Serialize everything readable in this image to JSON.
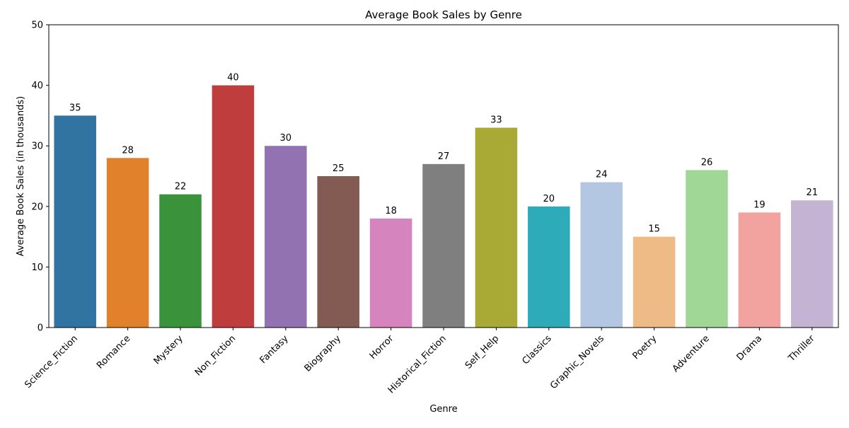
{
  "chart_data": {
    "type": "bar",
    "title": "Average Book Sales by Genre",
    "xlabel": "Genre",
    "ylabel": "Average Book Sales (in thousands)",
    "ylim": [
      0,
      50
    ],
    "yticks": [
      0,
      10,
      20,
      30,
      40,
      50
    ],
    "categories": [
      "Science_Fiction",
      "Romance",
      "Mystery",
      "Non_Fiction",
      "Fantasy",
      "Biography",
      "Horror",
      "Historical_Fiction",
      "Self_Help",
      "Classics",
      "Graphic_Novels",
      "Poetry",
      "Adventure",
      "Drama",
      "Thriller"
    ],
    "values": [
      35,
      28,
      22,
      40,
      30,
      25,
      18,
      27,
      33,
      20,
      24,
      15,
      26,
      19,
      21
    ],
    "colors": [
      "#3274a1",
      "#e1812c",
      "#3a923a",
      "#c03d3e",
      "#9372b2",
      "#845b53",
      "#d684bd",
      "#7f7f7f",
      "#a9aa35",
      "#2eabb8",
      "#b3c6e2",
      "#eebb86",
      "#a0d696",
      "#f2a39f",
      "#c4b3d2"
    ],
    "grid": false,
    "legend": "none",
    "data_labels": true
  }
}
